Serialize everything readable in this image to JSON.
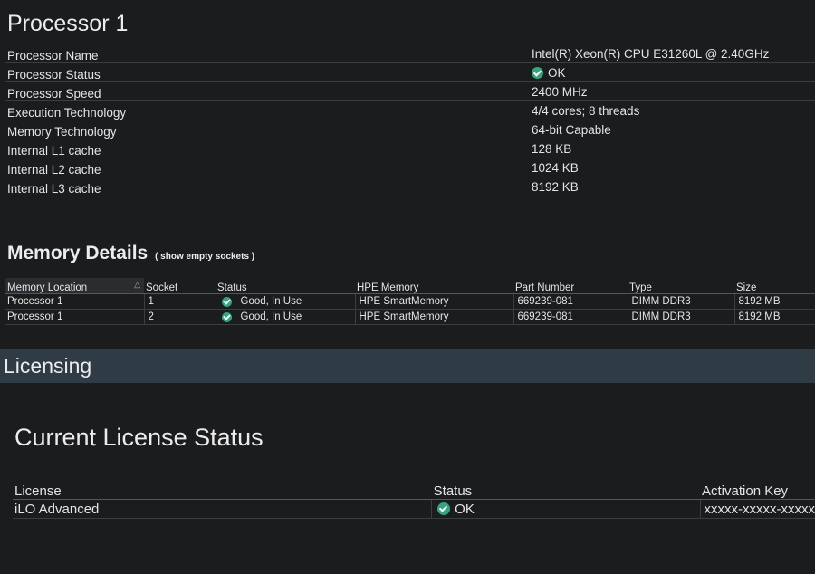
{
  "processor": {
    "title": "Processor 1",
    "rows": [
      {
        "label": "Processor Name",
        "value": "Intel(R) Xeon(R) CPU E31260L @ 2.40GHz"
      },
      {
        "label": "Processor Status",
        "value": "OK"
      },
      {
        "label": "Processor Speed",
        "value": "2400 MHz"
      },
      {
        "label": "Execution Technology",
        "value": "4/4 cores; 8 threads"
      },
      {
        "label": "Memory Technology",
        "value": "64-bit Capable"
      },
      {
        "label": "Internal L1 cache",
        "value": "128 KB"
      },
      {
        "label": "Internal L2 cache",
        "value": "1024 KB"
      },
      {
        "label": "Internal L3 cache",
        "value": "8192 KB"
      }
    ]
  },
  "memory": {
    "title": "Memory Details",
    "show_empty_link": "( show empty sockets )",
    "columns": [
      "Memory Location",
      "Socket",
      "Status",
      "HPE Memory",
      "Part Number",
      "Type",
      "Size"
    ],
    "rows": [
      {
        "location": "Processor 1",
        "socket": "1",
        "status": "Good, In Use",
        "hpe_memory": "HPE SmartMemory",
        "part_number": "669239-081",
        "type": "DIMM DDR3",
        "size": "8192 MB"
      },
      {
        "location": "Processor 1",
        "socket": "2",
        "status": "Good, In Use",
        "hpe_memory": "HPE SmartMemory",
        "part_number": "669239-081",
        "type": "DIMM DDR3",
        "size": "8192 MB"
      }
    ]
  },
  "licensing": {
    "section_title": "Licensing",
    "status_title": "Current License Status",
    "columns": [
      "License",
      "Status",
      "Activation Key"
    ],
    "row": {
      "license": "iLO Advanced",
      "status": "OK",
      "activation_key": "xxxxx-xxxxx-xxxxx"
    }
  },
  "icons": {
    "ok": "check-circle-icon",
    "sort": "sort-icon"
  },
  "colors": {
    "ok_green": "#2fa67c",
    "section_bar": "#2f3b45"
  }
}
